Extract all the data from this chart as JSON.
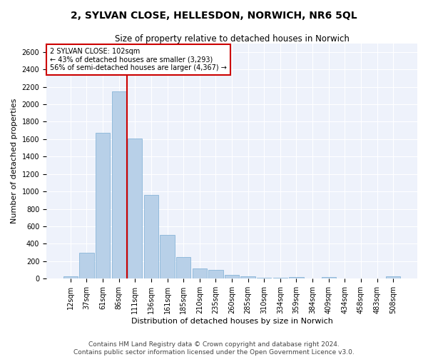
{
  "title": "2, SYLVAN CLOSE, HELLESDON, NORWICH, NR6 5QL",
  "subtitle": "Size of property relative to detached houses in Norwich",
  "xlabel": "Distribution of detached houses by size in Norwich",
  "ylabel": "Number of detached properties",
  "bar_labels": [
    "12sqm",
    "37sqm",
    "61sqm",
    "86sqm",
    "111sqm",
    "136sqm",
    "161sqm",
    "185sqm",
    "210sqm",
    "235sqm",
    "260sqm",
    "285sqm",
    "310sqm",
    "334sqm",
    "359sqm",
    "384sqm",
    "409sqm",
    "434sqm",
    "458sqm",
    "483sqm",
    "508sqm"
  ],
  "bar_values": [
    25,
    300,
    1670,
    2150,
    1610,
    960,
    500,
    248,
    120,
    100,
    45,
    30,
    15,
    10,
    20,
    5,
    18,
    5,
    5,
    5,
    25
  ],
  "bar_color": "#b8d0e8",
  "bar_edgecolor": "#7aadd4",
  "property_label": "2 SYLVAN CLOSE: 102sqm",
  "annotation_line1": "← 43% of detached houses are smaller (3,293)",
  "annotation_line2": "56% of semi-detached houses are larger (4,367) →",
  "vline_color": "#cc0000",
  "vline_x_index": 4,
  "annotation_box_facecolor": "#ffffff",
  "annotation_box_edgecolor": "#cc0000",
  "ylim": [
    0,
    2700
  ],
  "yticks": [
    0,
    200,
    400,
    600,
    800,
    1000,
    1200,
    1400,
    1600,
    1800,
    2000,
    2200,
    2400,
    2600
  ],
  "background_color": "#eef2fb",
  "grid_color": "#ffffff",
  "footer_line1": "Contains HM Land Registry data © Crown copyright and database right 2024.",
  "footer_line2": "Contains public sector information licensed under the Open Government Licence v3.0.",
  "title_fontsize": 10,
  "subtitle_fontsize": 8.5,
  "xlabel_fontsize": 8,
  "ylabel_fontsize": 8,
  "tick_fontsize": 7,
  "footer_fontsize": 6.5
}
